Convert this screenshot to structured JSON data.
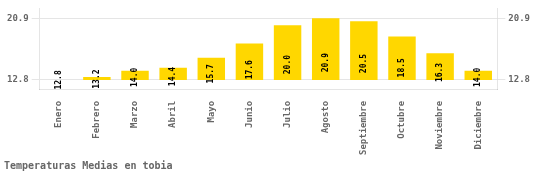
{
  "chart_data": {
    "type": "bar",
    "title": "Temperaturas Medias en tobia",
    "categories": [
      "Enero",
      "Febrero",
      "Marzo",
      "Abril",
      "Mayo",
      "Junio",
      "Julio",
      "Agosto",
      "Septiembre",
      "Octubre",
      "Noviembre",
      "Diciembre"
    ],
    "values": [
      12.8,
      13.2,
      14.0,
      14.4,
      15.7,
      17.6,
      20.0,
      20.9,
      20.5,
      18.5,
      16.3,
      14.0
    ],
    "value_labels": [
      "12.8",
      "13.2",
      "14.0",
      "14.4",
      "15.7",
      "17.6",
      "20.0",
      "20.9",
      "20.5",
      "18.5",
      "16.3",
      "14.0"
    ],
    "baseline": 12.8,
    "color": "#FFD700",
    "ylim": [
      11.5,
      22.2
    ],
    "yticks": [
      12.8,
      20.9
    ],
    "y2lim": [
      11.5,
      22.2
    ],
    "y2ticks": [
      12.8,
      20.9
    ],
    "grid": true,
    "data_labels": true
  }
}
